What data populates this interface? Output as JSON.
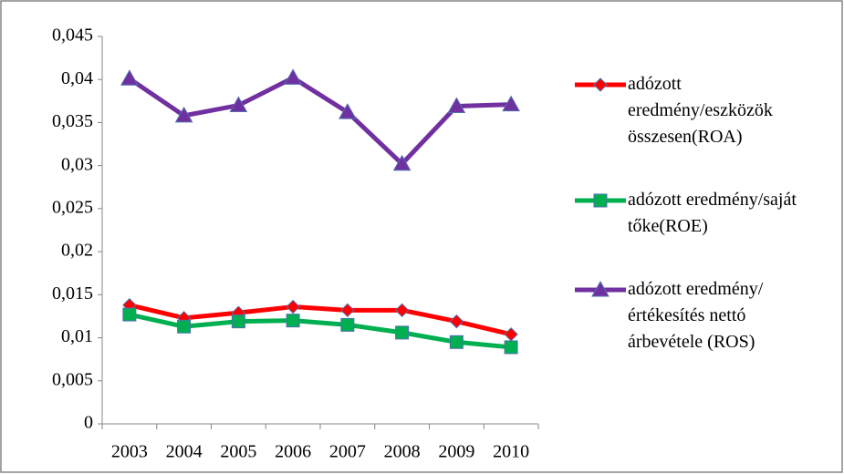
{
  "chart_data": {
    "type": "line",
    "categories": [
      "2003",
      "2004",
      "2005",
      "2006",
      "2007",
      "2008",
      "2009",
      "2010"
    ],
    "series": [
      {
        "name": "adózott eredmény/eszközök összesen(ROA)",
        "color": "#ff0000",
        "marker": "diamond",
        "values": [
          0.0138,
          0.0123,
          0.0129,
          0.0136,
          0.0132,
          0.0132,
          0.0119,
          0.0104
        ]
      },
      {
        "name": "adózott eredmény/saját tőke(ROE)",
        "color": "#00b050",
        "marker": "square",
        "values": [
          0.0127,
          0.0113,
          0.0119,
          0.012,
          0.0115,
          0.0106,
          0.0095,
          0.0089
        ]
      },
      {
        "name": "adózott eredmény/értékesítés nettó árbevétele (ROS)",
        "color": "#7030a0",
        "marker": "triangle",
        "values": [
          0.0401,
          0.0358,
          0.037,
          0.0402,
          0.0362,
          0.0302,
          0.0369,
          0.0371
        ]
      }
    ],
    "ylim": [
      0,
      0.045
    ],
    "yticks": [
      0,
      {
        "value": 0.005,
        "label": "0,005"
      },
      {
        "value": 0.01,
        "label": "0,01"
      },
      {
        "value": 0.015,
        "label": "0,015"
      },
      {
        "value": 0.02,
        "label": "0,02"
      },
      {
        "value": 0.025,
        "label": "0,025"
      },
      {
        "value": 0.03,
        "label": "0,03"
      },
      {
        "value": 0.035,
        "label": "0,035"
      },
      {
        "value": 0.04,
        "label": "0,04"
      },
      {
        "value": 0.045,
        "label": "0,045"
      }
    ],
    "grid": false,
    "legend": "right"
  }
}
